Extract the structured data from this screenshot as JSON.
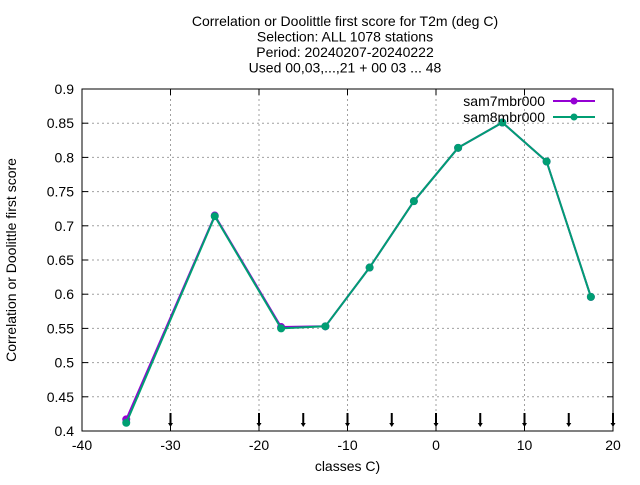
{
  "chart_data": {
    "type": "line",
    "title_lines": [
      "Correlation or Doolittle first score  for T2m (deg C)",
      "Selection: ALL   1078 stations",
      "Period: 20240207-20240222",
      "Used 00,03,...,21 + 00 03 ... 48"
    ],
    "xlabel": "classes C)",
    "ylabel": "Correlation or Doolittle first score",
    "xlim": [
      -40,
      20
    ],
    "ylim": [
      0.4,
      0.9
    ],
    "xticks": [
      -40,
      -30,
      -20,
      -10,
      0,
      10,
      20
    ],
    "xtick_labels": [
      "-40",
      "-30",
      "-20",
      "-10",
      "0",
      "10",
      "20"
    ],
    "yticks": [
      0.4,
      0.45,
      0.5,
      0.55,
      0.6,
      0.65,
      0.7,
      0.75,
      0.8,
      0.85,
      0.9
    ],
    "ytick_labels": [
      "0.4",
      "0.45",
      "0.5",
      "0.55",
      "0.6",
      "0.65",
      "0.7",
      "0.75",
      "0.8",
      "0.85",
      "0.9"
    ],
    "grid": true,
    "legend_position": "top-right",
    "class_markers_x": [
      -30,
      -20,
      -15,
      -10,
      -5,
      0,
      5,
      10,
      15,
      20
    ],
    "series": [
      {
        "name": "sam7mbr000",
        "color": "#9400d3",
        "x": [
          -35,
          -25,
          -17.5,
          -12.5,
          -7.5,
          -2.5,
          2.5,
          7.5,
          12.5,
          17.5
        ],
        "values": [
          0.417,
          0.715,
          0.552,
          0.553,
          0.639,
          0.736,
          0.814,
          0.851,
          0.794,
          0.596
        ]
      },
      {
        "name": "sam8mbr000",
        "color": "#009e73",
        "x": [
          -35,
          -25,
          -17.5,
          -12.5,
          -7.5,
          -2.5,
          2.5,
          7.5,
          12.5,
          17.5
        ],
        "values": [
          0.412,
          0.714,
          0.55,
          0.553,
          0.639,
          0.736,
          0.814,
          0.851,
          0.794,
          0.596
        ]
      }
    ]
  }
}
